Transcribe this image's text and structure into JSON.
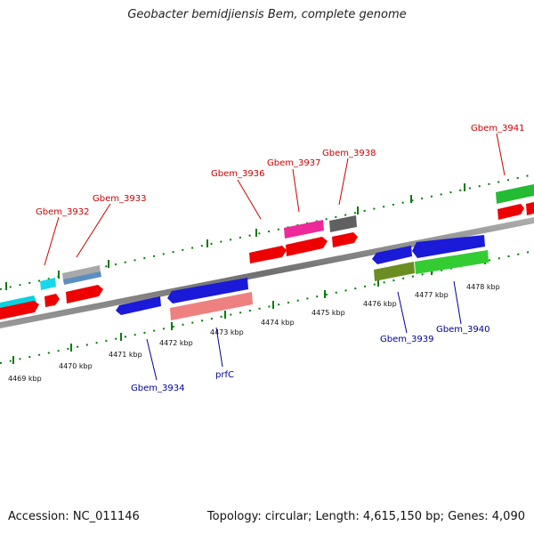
{
  "title": "Geobacter bemidjiensis Bem, complete genome",
  "footer": {
    "accession": "Accession: NC_011146",
    "summary": "Topology: circular; Length: 4,615,150 bp; Genes: 4,090"
  },
  "colors": {
    "forward_label": "#cc0000",
    "reverse_label": "#000099",
    "backbone": "#808080",
    "tick": "#0a7a0a"
  },
  "kbp_labels": [
    "4469 kbp",
    "4470 kbp",
    "4471 kbp",
    "4472 kbp",
    "4473 kbp",
    "4474 kbp",
    "4475 kbp",
    "4476 kbp",
    "4477 kbp",
    "4478 kbp"
  ],
  "forward_genes": [
    {
      "name": "Gbem_3932"
    },
    {
      "name": "Gbem_3933"
    },
    {
      "name": "Gbem_3936"
    },
    {
      "name": "Gbem_3937"
    },
    {
      "name": "Gbem_3938"
    },
    {
      "name": "Gbem_3941"
    }
  ],
  "reverse_genes": [
    {
      "name": "Gbem_3934"
    },
    {
      "name": "prfC"
    },
    {
      "name": "Gbem_3939"
    },
    {
      "name": "Gbem_3940"
    }
  ]
}
